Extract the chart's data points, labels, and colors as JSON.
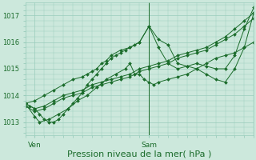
{
  "bg_color": "#cce8dc",
  "grid_color": "#99ccbb",
  "line_color": "#1a6b2a",
  "marker_color": "#1a6b2a",
  "xlabel": "Pression niveau de la mer( hPa )",
  "xlabel_fontsize": 8,
  "yticks": [
    1013,
    1014,
    1015,
    1016,
    1017
  ],
  "ylim": [
    1012.5,
    1017.5
  ],
  "xlim": [
    0,
    48
  ],
  "xtick_labels": [
    "Ven",
    "Sam"
  ],
  "xtick_positions": [
    2,
    26
  ],
  "vline_x": 26,
  "series": [
    {
      "x": [
        0,
        2,
        4,
        6,
        8,
        10,
        12,
        14,
        16,
        18,
        20,
        22,
        24,
        26,
        28,
        30,
        32,
        34,
        36,
        38,
        40,
        42,
        44,
        46,
        48
      ],
      "y": [
        1013.7,
        1013.5,
        1013.6,
        1013.8,
        1014.0,
        1014.1,
        1014.2,
        1014.4,
        1014.5,
        1014.6,
        1014.7,
        1014.8,
        1015.0,
        1015.1,
        1015.2,
        1015.3,
        1015.5,
        1015.6,
        1015.7,
        1015.8,
        1016.0,
        1016.2,
        1016.5,
        1016.8,
        1017.1
      ]
    },
    {
      "x": [
        0,
        2,
        4,
        6,
        8,
        10,
        12,
        14,
        16,
        18,
        20,
        22,
        24,
        26,
        28,
        30,
        32,
        34,
        36,
        38,
        40,
        42,
        44,
        46,
        48
      ],
      "y": [
        1013.6,
        1013.4,
        1013.5,
        1013.7,
        1013.9,
        1014.0,
        1014.1,
        1014.3,
        1014.4,
        1014.5,
        1014.6,
        1014.7,
        1014.9,
        1015.0,
        1015.1,
        1015.2,
        1015.4,
        1015.5,
        1015.6,
        1015.7,
        1015.9,
        1016.1,
        1016.3,
        1016.6,
        1016.9
      ]
    },
    {
      "x": [
        0,
        2,
        3,
        5,
        7,
        9,
        11,
        13,
        15,
        17,
        19,
        21,
        22,
        23,
        24,
        25,
        26,
        27,
        28,
        30,
        32,
        34,
        36,
        38,
        40,
        42,
        44,
        46,
        48
      ],
      "y": [
        1013.7,
        1013.2,
        1013.0,
        1013.1,
        1013.3,
        1013.5,
        1013.8,
        1014.0,
        1014.3,
        1014.6,
        1014.8,
        1015.0,
        1015.2,
        1014.8,
        1014.8,
        1014.6,
        1014.5,
        1014.4,
        1014.5,
        1014.6,
        1014.7,
        1014.8,
        1015.0,
        1015.2,
        1015.4,
        1015.5,
        1015.6,
        1015.8,
        1016.0
      ]
    },
    {
      "x": [
        0,
        1,
        2,
        3,
        4,
        5,
        6,
        7,
        8,
        9,
        10,
        11,
        12,
        13,
        14,
        15,
        16,
        17,
        18,
        19,
        20,
        21,
        22,
        23,
        24,
        26,
        28,
        30,
        32,
        34,
        36,
        38,
        40,
        42,
        44,
        46,
        48
      ],
      "y": [
        1013.7,
        1013.6,
        1013.5,
        1013.3,
        1013.1,
        1013.0,
        1013.0,
        1013.1,
        1013.3,
        1013.5,
        1013.7,
        1013.9,
        1014.1,
        1014.4,
        1014.6,
        1014.8,
        1015.0,
        1015.2,
        1015.4,
        1015.5,
        1015.6,
        1015.7,
        1015.8,
        1015.9,
        1016.0,
        1016.6,
        1016.1,
        1015.9,
        1015.2,
        1015.1,
        1015.0,
        1014.8,
        1014.6,
        1014.5,
        1015.0,
        1015.8,
        1017.1
      ]
    },
    {
      "x": [
        0,
        2,
        4,
        6,
        8,
        10,
        12,
        13,
        14,
        15,
        16,
        17,
        18,
        20,
        22,
        24,
        26,
        28,
        30,
        32,
        34,
        36,
        38,
        40,
        42,
        44,
        46,
        48
      ],
      "y": [
        1013.7,
        1013.8,
        1014.0,
        1014.2,
        1014.4,
        1014.6,
        1014.7,
        1014.8,
        1014.9,
        1015.0,
        1015.2,
        1015.3,
        1015.5,
        1015.7,
        1015.8,
        1016.0,
        1016.6,
        1015.8,
        1015.2,
        1015.0,
        1015.1,
        1015.2,
        1015.1,
        1015.0,
        1015.0,
        1015.5,
        1016.5,
        1017.3
      ]
    }
  ]
}
